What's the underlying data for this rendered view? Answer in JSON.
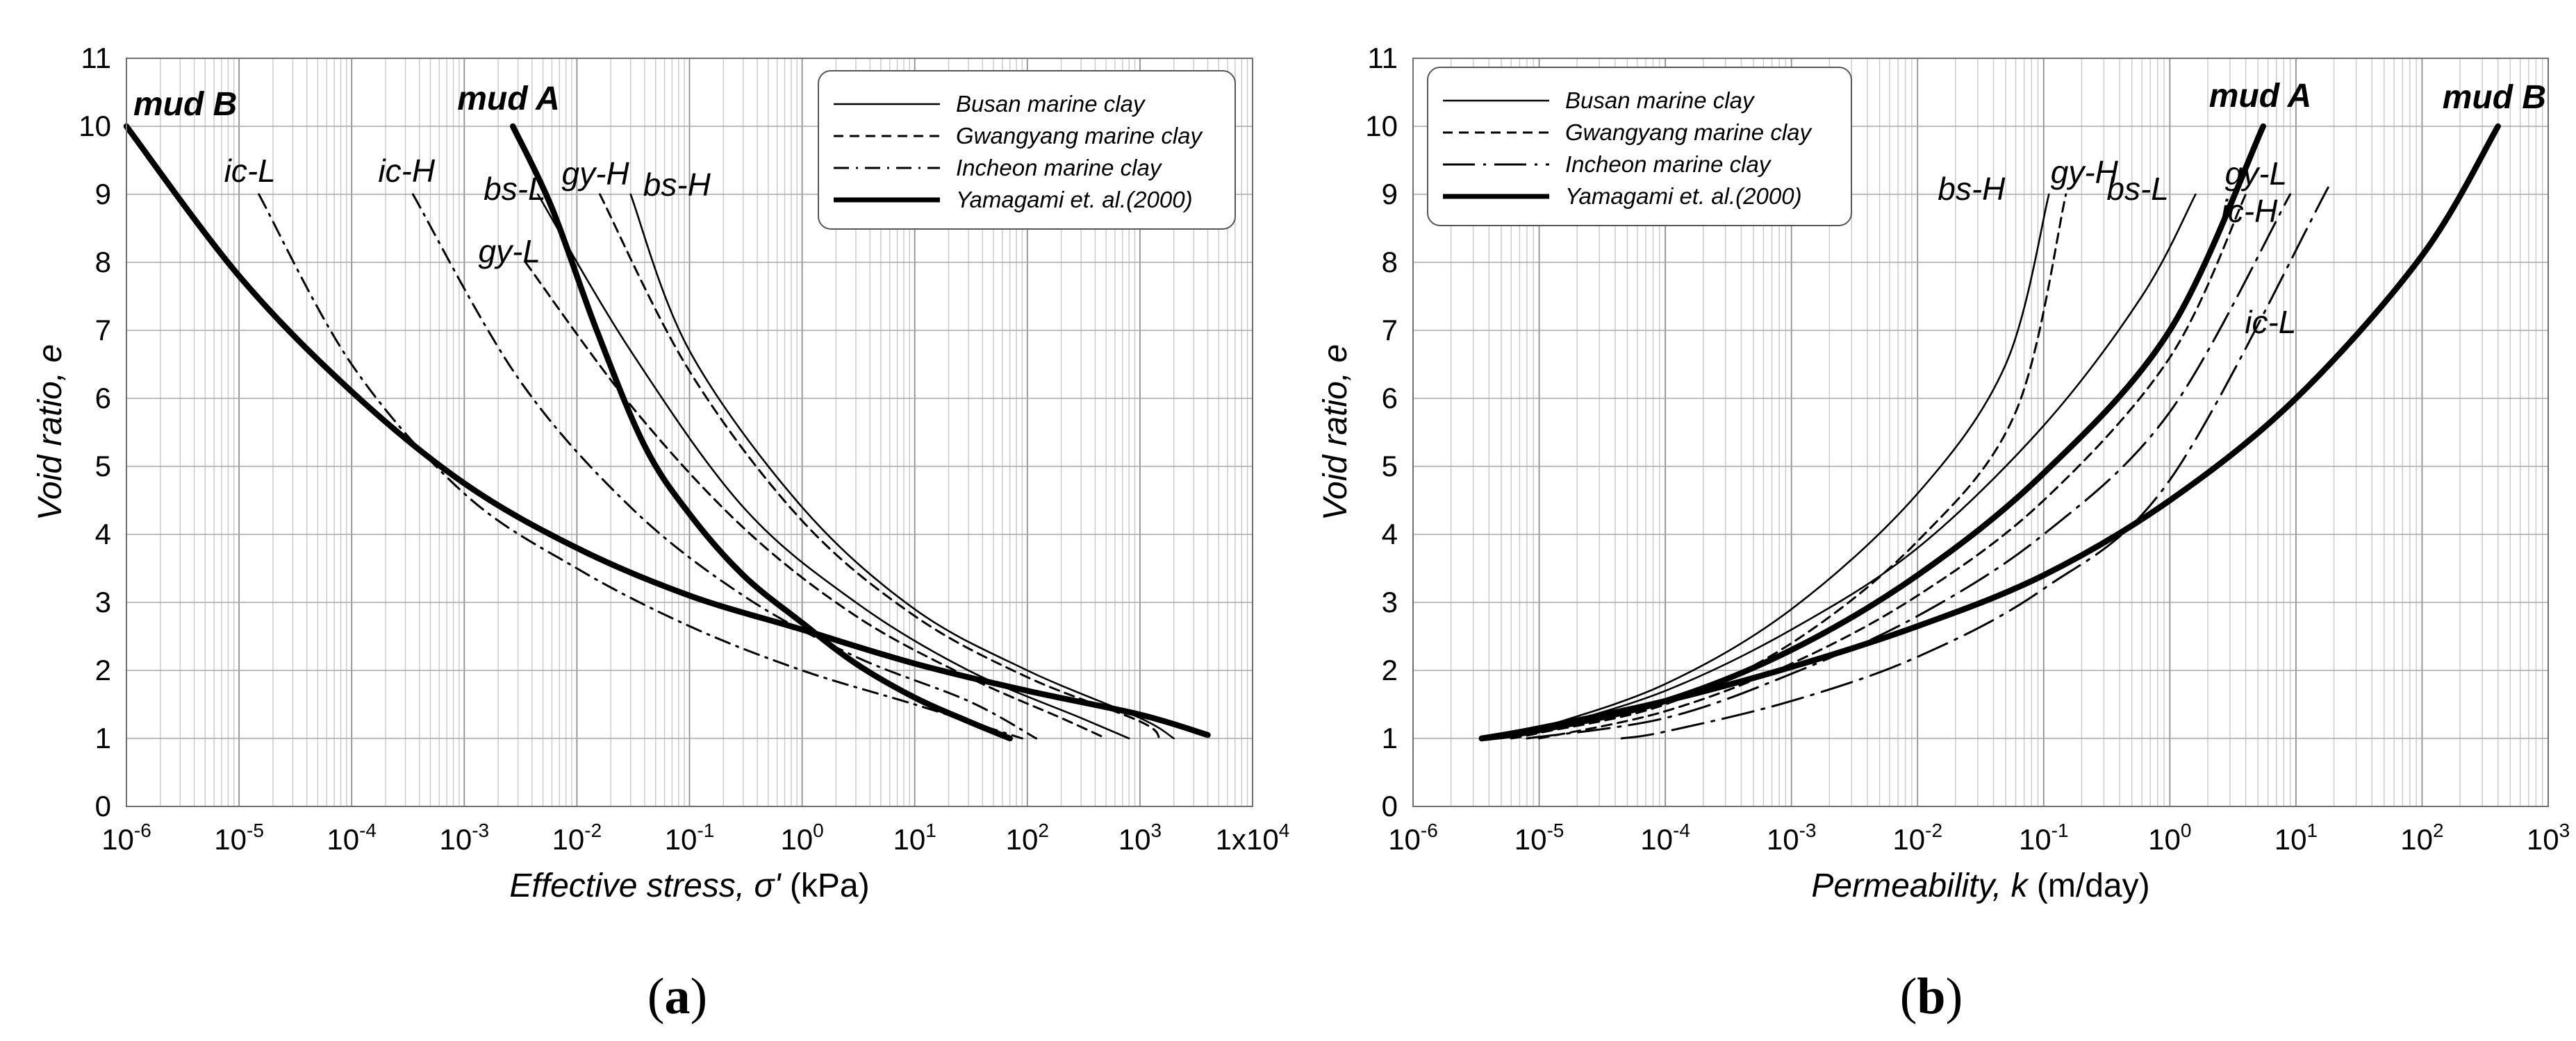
{
  "chart_data": [
    {
      "type": "line",
      "panel": "(a)",
      "panel_letter": "a",
      "xscale": "log",
      "xlabel": "Effective stress, σ' (kPa)",
      "xlabel_main": "Effective stress, ",
      "xlabel_symbol": "σ'",
      "xlabel_unit": " (kPa)",
      "ylabel": "Void ratio, e",
      "xlim": [
        1e-06,
        10000.0
      ],
      "ylim": [
        0,
        11
      ],
      "grid": true,
      "yticks": [
        "0",
        "1",
        "2",
        "3",
        "4",
        "5",
        "6",
        "7",
        "8",
        "9",
        "10",
        "11"
      ],
      "xticks": [
        {
          "base": "10",
          "exp": "-6"
        },
        {
          "base": "10",
          "exp": "-5"
        },
        {
          "base": "10",
          "exp": "-4"
        },
        {
          "base": "10",
          "exp": "-3"
        },
        {
          "base": "10",
          "exp": "-2"
        },
        {
          "base": "10",
          "exp": "-1"
        },
        {
          "base": "10",
          "exp": "0"
        },
        {
          "base": "10",
          "exp": "1"
        },
        {
          "base": "10",
          "exp": "2"
        },
        {
          "base": "10",
          "exp": "3"
        },
        {
          "base": "1x10",
          "exp": "4"
        }
      ],
      "legend_position": "top-right",
      "legend": [
        {
          "label": "Busan marine clay",
          "style": "solid"
        },
        {
          "label": "Gwangyang marine clay",
          "style": "dash"
        },
        {
          "label": "Incheon marine clay",
          "style": "dashdot"
        },
        {
          "label": "Yamagami et. al.(2000)",
          "style": "thick"
        }
      ],
      "series": [
        {
          "name": "mud B",
          "label": "mud B",
          "group": "Yamagami et. al.(2000)",
          "style": "thick",
          "points": [
            [
              1e-06,
              10
            ],
            [
              1e-05,
              7.8
            ],
            [
              0.0001,
              6.1
            ],
            [
              0.001,
              4.75
            ],
            [
              0.01,
              3.8
            ],
            [
              0.1,
              3.1
            ],
            [
              1,
              2.6
            ],
            [
              10,
              2.1
            ],
            [
              100,
              1.7
            ],
            [
              1000,
              1.35
            ],
            [
              4000,
              1.05
            ]
          ]
        },
        {
          "name": "mud A",
          "label": "mud A",
          "group": "Yamagami et. al.(2000)",
          "style": "thick",
          "points": [
            [
              0.0027,
              10
            ],
            [
              0.006,
              8.8
            ],
            [
              0.015,
              7
            ],
            [
              0.04,
              5.3
            ],
            [
              0.1,
              4.3
            ],
            [
              0.3,
              3.4
            ],
            [
              1,
              2.7
            ],
            [
              3,
              2.1
            ],
            [
              10,
              1.6
            ],
            [
              30,
              1.25
            ],
            [
              70,
              1
            ]
          ]
        },
        {
          "name": "bs-H",
          "label": "bs-H",
          "group": "Busan marine clay",
          "style": "solid",
          "points": [
            [
              0.03,
              9
            ],
            [
              0.1,
              6.7
            ],
            [
              1,
              4.4
            ],
            [
              10,
              2.9
            ],
            [
              100,
              2
            ],
            [
              1000,
              1.3
            ],
            [
              2000,
              1
            ]
          ]
        },
        {
          "name": "bs-L",
          "label": "bs-L",
          "group": "Busan marine clay",
          "style": "solid",
          "points": [
            [
              0.0045,
              9
            ],
            [
              0.03,
              6.7
            ],
            [
              0.3,
              4.4
            ],
            [
              3,
              3
            ],
            [
              30,
              2
            ],
            [
              300,
              1.3
            ],
            [
              800,
              1
            ]
          ]
        },
        {
          "name": "gy-H",
          "label": "gy-H",
          "group": "Gwangyang marine clay",
          "style": "dash",
          "points": [
            [
              0.016,
              9
            ],
            [
              0.1,
              6.4
            ],
            [
              1,
              4.2
            ],
            [
              10,
              2.8
            ],
            [
              100,
              1.9
            ],
            [
              1000,
              1.25
            ],
            [
              1500,
              1
            ]
          ]
        },
        {
          "name": "gy-L",
          "label": "gy-L",
          "group": "Gwangyang marine clay",
          "style": "dash",
          "points": [
            [
              0.0035,
              8
            ],
            [
              0.03,
              5.9
            ],
            [
              0.3,
              4.1
            ],
            [
              3,
              2.8
            ],
            [
              30,
              1.9
            ],
            [
              200,
              1.3
            ],
            [
              500,
              1
            ]
          ]
        },
        {
          "name": "ic-H",
          "label": "ic-H",
          "group": "Incheon marine clay",
          "style": "dashdot",
          "points": [
            [
              0.00035,
              9
            ],
            [
              0.003,
              6.3
            ],
            [
              0.03,
              4.4
            ],
            [
              0.3,
              3.1
            ],
            [
              3,
              2.2
            ],
            [
              30,
              1.55
            ],
            [
              120,
              1
            ]
          ]
        },
        {
          "name": "ic-L",
          "label": "ic-L",
          "group": "Incheon marine clay",
          "style": "dashdot",
          "points": [
            [
              1.5e-05,
              9
            ],
            [
              0.0001,
              6.5
            ],
            [
              0.001,
              4.6
            ],
            [
              0.01,
              3.5
            ],
            [
              0.1,
              2.65
            ],
            [
              1,
              2
            ],
            [
              10,
              1.5
            ],
            [
              90,
              1
            ]
          ]
        }
      ]
    },
    {
      "type": "line",
      "panel": "(b)",
      "panel_letter": "b",
      "xscale": "log",
      "xlabel": "Permeability, k (m/day)",
      "xlabel_main": "Permeability, ",
      "xlabel_symbol": "k",
      "xlabel_unit": " (m/day)",
      "ylabel": "Void ratio, e",
      "xlim": [
        1e-06,
        1000.0
      ],
      "ylim": [
        0,
        11
      ],
      "grid": true,
      "yticks": [
        "0",
        "1",
        "2",
        "3",
        "4",
        "5",
        "6",
        "7",
        "8",
        "9",
        "10",
        "11"
      ],
      "xticks": [
        {
          "base": "10",
          "exp": "-6"
        },
        {
          "base": "10",
          "exp": "-5"
        },
        {
          "base": "10",
          "exp": "-4"
        },
        {
          "base": "10",
          "exp": "-3"
        },
        {
          "base": "10",
          "exp": "-2"
        },
        {
          "base": "10",
          "exp": "-1"
        },
        {
          "base": "10",
          "exp": "0"
        },
        {
          "base": "10",
          "exp": "1"
        },
        {
          "base": "10",
          "exp": "2"
        },
        {
          "base": "10",
          "exp": "3"
        }
      ],
      "legend_position": "top-left",
      "legend": [
        {
          "label": "Busan marine clay",
          "style": "solid"
        },
        {
          "label": "Gwangyang marine clay",
          "style": "dash"
        },
        {
          "label": "Incheon marine clay",
          "style": "longdashdot"
        },
        {
          "label": "Yamagami et. al.(2000)",
          "style": "thick"
        }
      ],
      "series": [
        {
          "name": "mud B",
          "label": "mud B",
          "group": "Yamagami et. al.(2000)",
          "style": "thick",
          "points": [
            [
              3.5e-06,
              1
            ],
            [
              1e-05,
              1.15
            ],
            [
              0.0001,
              1.55
            ],
            [
              0.001,
              2.05
            ],
            [
              0.01,
              2.65
            ],
            [
              0.1,
              3.4
            ],
            [
              1,
              4.5
            ],
            [
              10,
              6
            ],
            [
              100,
              8.1
            ],
            [
              400,
              10
            ]
          ]
        },
        {
          "name": "mud A",
          "label": "mud A",
          "group": "Yamagami et. al.(2000)",
          "style": "thick",
          "points": [
            [
              3.5e-06,
              1
            ],
            [
              1e-05,
              1.12
            ],
            [
              0.0001,
              1.55
            ],
            [
              0.001,
              2.3
            ],
            [
              0.01,
              3.4
            ],
            [
              0.1,
              4.9
            ],
            [
              1,
              7
            ],
            [
              5.5,
              10
            ]
          ]
        },
        {
          "name": "bs-H",
          "label": "bs-H",
          "group": "Busan marine clay",
          "style": "solid",
          "points": [
            [
              5e-06,
              1
            ],
            [
              1e-05,
              1.15
            ],
            [
              0.0001,
              1.8
            ],
            [
              0.001,
              2.9
            ],
            [
              0.01,
              4.6
            ],
            [
              0.05,
              6.5
            ],
            [
              0.11,
              9
            ]
          ]
        },
        {
          "name": "bs-L",
          "label": "bs-L",
          "group": "Busan marine clay",
          "style": "solid",
          "points": [
            [
              5e-06,
              1
            ],
            [
              1e-05,
              1.12
            ],
            [
              0.0001,
              1.7
            ],
            [
              0.001,
              2.6
            ],
            [
              0.01,
              3.8
            ],
            [
              0.1,
              5.6
            ],
            [
              0.6,
              7.5
            ],
            [
              1.6,
              9
            ]
          ]
        },
        {
          "name": "gy-H",
          "label": "gy-H",
          "group": "Gwangyang marine clay",
          "style": "dash",
          "points": [
            [
              6e-06,
              1
            ],
            [
              1e-05,
              1.08
            ],
            [
              0.0001,
              1.5
            ],
            [
              0.001,
              2.4
            ],
            [
              0.01,
              3.9
            ],
            [
              0.06,
              5.8
            ],
            [
              0.15,
              9
            ]
          ]
        },
        {
          "name": "gy-L",
          "label": "gy-L",
          "group": "Gwangyang marine clay",
          "style": "dash",
          "points": [
            [
              1e-05,
              1
            ],
            [
              0.0001,
              1.4
            ],
            [
              0.001,
              2.1
            ],
            [
              0.01,
              3.1
            ],
            [
              0.1,
              4.5
            ],
            [
              1,
              6.6
            ],
            [
              4,
              9
            ]
          ]
        },
        {
          "name": "ic-H",
          "label": "ic-H",
          "group": "Incheon marine clay",
          "style": "longdashdot",
          "points": [
            [
              8e-06,
              1
            ],
            [
              0.0001,
              1.3
            ],
            [
              0.001,
              1.95
            ],
            [
              0.01,
              2.8
            ],
            [
              0.1,
              4
            ],
            [
              1,
              5.8
            ],
            [
              9,
              9
            ]
          ]
        },
        {
          "name": "ic-L",
          "label": "ic-L",
          "group": "Incheon marine clay",
          "style": "longdashdot",
          "points": [
            [
              4.5e-05,
              1
            ],
            [
              0.0001,
              1.1
            ],
            [
              0.001,
              1.55
            ],
            [
              0.01,
              2.2
            ],
            [
              0.1,
              3.2
            ],
            [
              1,
              4.8
            ],
            [
              18,
              9.1
            ]
          ]
        }
      ]
    }
  ]
}
